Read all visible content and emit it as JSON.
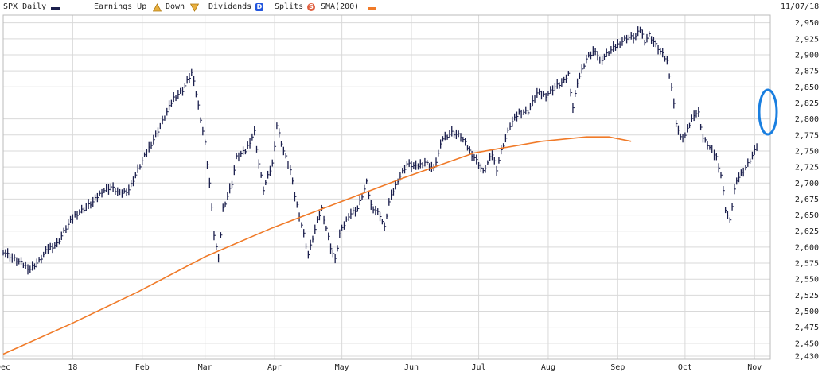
{
  "legend": {
    "symbol": "SPX Daily",
    "earnings_label": "Earnings Up",
    "earnings_down_label": "Down",
    "dividends_label": "Dividends",
    "dividends_badge": "D",
    "splits_label": "Splits",
    "splits_badge": "S",
    "sma_label": "SMA(200)",
    "date": "11/07/18"
  },
  "colors": {
    "price": "#1b1f4d",
    "sma": "#f07a28",
    "grid": "#d9d9d9",
    "dividends_badge": "#2255dd",
    "splits_badge": "#e06040",
    "earnings_icon": "#e8b040",
    "highlight": "#1a7fe0"
  },
  "chart_data": {
    "type": "line",
    "title": "SPX Daily",
    "ylim": [
      2425,
      2962
    ],
    "yticks": [
      2430,
      2450,
      2475,
      2500,
      2525,
      2550,
      2575,
      2600,
      2625,
      2650,
      2675,
      2700,
      2725,
      2750,
      2775,
      2800,
      2825,
      2850,
      2875,
      2900,
      2925,
      2950
    ],
    "x_labels": [
      "Dec",
      "18",
      "Feb",
      "Mar",
      "Apr",
      "May",
      "Jun",
      "Jul",
      "Aug",
      "Sep",
      "Oct",
      "Nov"
    ],
    "x_label_days": [
      28,
      59,
      90,
      118,
      149,
      179,
      210,
      240,
      271,
      302,
      332,
      363
    ],
    "grid": true,
    "series": [
      {
        "name": "SPX Daily",
        "style": "bars",
        "points": [
          [
            0,
            2594
          ],
          [
            4,
            2583
          ],
          [
            8,
            2575
          ],
          [
            12,
            2566
          ],
          [
            16,
            2578
          ],
          [
            20,
            2598
          ],
          [
            24,
            2605
          ],
          [
            28,
            2630
          ],
          [
            32,
            2650
          ],
          [
            36,
            2660
          ],
          [
            40,
            2670
          ],
          [
            44,
            2687
          ],
          [
            48,
            2694
          ],
          [
            52,
            2683
          ],
          [
            56,
            2690
          ],
          [
            60,
            2720
          ],
          [
            64,
            2748
          ],
          [
            68,
            2775
          ],
          [
            72,
            2803
          ],
          [
            76,
            2833
          ],
          [
            80,
            2845
          ],
          [
            84,
            2872
          ],
          [
            86,
            2840
          ],
          [
            90,
            2762
          ],
          [
            92,
            2700
          ],
          [
            94,
            2620
          ],
          [
            96,
            2580
          ],
          [
            98,
            2660
          ],
          [
            102,
            2700
          ],
          [
            104,
            2740
          ],
          [
            108,
            2750
          ],
          [
            112,
            2780
          ],
          [
            114,
            2730
          ],
          [
            116,
            2690
          ],
          [
            118,
            2710
          ],
          [
            120,
            2730
          ],
          [
            122,
            2790
          ],
          [
            125,
            2750
          ],
          [
            128,
            2720
          ],
          [
            130,
            2680
          ],
          [
            134,
            2620
          ],
          [
            136,
            2588
          ],
          [
            140,
            2640
          ],
          [
            142,
            2660
          ],
          [
            146,
            2600
          ],
          [
            148,
            2580
          ],
          [
            150,
            2620
          ],
          [
            154,
            2650
          ],
          [
            158,
            2660
          ],
          [
            162,
            2700
          ],
          [
            164,
            2665
          ],
          [
            168,
            2650
          ],
          [
            170,
            2630
          ],
          [
            172,
            2670
          ],
          [
            176,
            2705
          ],
          [
            180,
            2730
          ],
          [
            184,
            2725
          ],
          [
            188,
            2733
          ],
          [
            192,
            2722
          ],
          [
            196,
            2770
          ],
          [
            200,
            2779
          ],
          [
            204,
            2773
          ],
          [
            208,
            2750
          ],
          [
            212,
            2730
          ],
          [
            214,
            2717
          ],
          [
            218,
            2745
          ],
          [
            220,
            2722
          ],
          [
            222,
            2750
          ],
          [
            226,
            2790
          ],
          [
            230,
            2810
          ],
          [
            234,
            2812
          ],
          [
            238,
            2840
          ],
          [
            242,
            2837
          ],
          [
            246,
            2850
          ],
          [
            250,
            2858
          ],
          [
            252,
            2870
          ],
          [
            254,
            2818
          ],
          [
            256,
            2858
          ],
          [
            260,
            2893
          ],
          [
            264,
            2908
          ],
          [
            266,
            2890
          ],
          [
            270,
            2904
          ],
          [
            274,
            2916
          ],
          [
            278,
            2927
          ],
          [
            282,
            2928
          ],
          [
            284,
            2940
          ],
          [
            286,
            2922
          ],
          [
            288,
            2931
          ],
          [
            292,
            2910
          ],
          [
            296,
            2890
          ],
          [
            298,
            2850
          ],
          [
            300,
            2795
          ],
          [
            302,
            2770
          ],
          [
            304,
            2774
          ],
          [
            308,
            2808
          ],
          [
            310,
            2809
          ],
          [
            312,
            2770
          ],
          [
            314,
            2760
          ],
          [
            318,
            2740
          ],
          [
            320,
            2713
          ],
          [
            322,
            2660
          ],
          [
            324,
            2640
          ],
          [
            326,
            2690
          ],
          [
            328,
            2710
          ],
          [
            330,
            2720
          ],
          [
            332,
            2730
          ],
          [
            334,
            2743
          ],
          [
            336,
            2756
          ]
        ]
      },
      {
        "name": "SMA(200)",
        "style": "line",
        "points": [
          [
            0,
            2433
          ],
          [
            30,
            2480
          ],
          [
            60,
            2530
          ],
          [
            90,
            2585
          ],
          [
            120,
            2630
          ],
          [
            150,
            2670
          ],
          [
            180,
            2710
          ],
          [
            210,
            2747
          ],
          [
            240,
            2765
          ],
          [
            260,
            2772
          ],
          [
            270,
            2772
          ],
          [
            280,
            2765
          ]
        ]
      }
    ]
  }
}
